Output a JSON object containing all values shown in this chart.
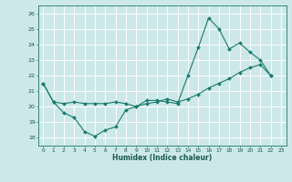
{
  "title": "",
  "xlabel": "Humidex (Indice chaleur)",
  "bg_color": "#cce8e8",
  "grid_color": "#ffffff",
  "line_color": "#1a7a6e",
  "xlim": [
    -0.5,
    23.5
  ],
  "ylim": [
    17.5,
    26.5
  ],
  "yticks": [
    18,
    19,
    20,
    21,
    22,
    23,
    24,
    25,
    26
  ],
  "xticks": [
    0,
    1,
    2,
    3,
    4,
    5,
    6,
    7,
    8,
    9,
    10,
    11,
    12,
    13,
    14,
    15,
    16,
    17,
    18,
    19,
    20,
    21,
    22,
    23
  ],
  "series1_x": [
    0,
    1,
    2,
    3,
    4,
    5,
    6,
    7,
    8,
    9,
    10,
    11,
    12,
    13,
    14,
    15,
    16,
    17,
    18,
    19,
    20,
    21,
    22
  ],
  "series1_y": [
    21.5,
    20.3,
    19.6,
    19.3,
    18.4,
    18.1,
    18.5,
    18.7,
    19.8,
    20.0,
    20.4,
    20.4,
    20.3,
    20.2,
    22.0,
    23.8,
    25.7,
    25.0,
    23.7,
    24.1,
    23.5,
    23.0,
    22.0
  ],
  "series2_x": [
    0,
    1,
    2,
    3,
    4,
    5,
    6,
    7,
    8,
    9,
    10,
    11,
    12,
    13,
    14,
    15,
    16,
    17,
    18,
    19,
    20,
    21,
    22
  ],
  "series2_y": [
    21.5,
    20.3,
    20.2,
    20.3,
    20.2,
    20.2,
    20.2,
    20.3,
    20.2,
    20.0,
    20.2,
    20.3,
    20.5,
    20.3,
    20.5,
    20.8,
    21.2,
    21.5,
    21.8,
    22.2,
    22.5,
    22.7,
    22.0
  ]
}
